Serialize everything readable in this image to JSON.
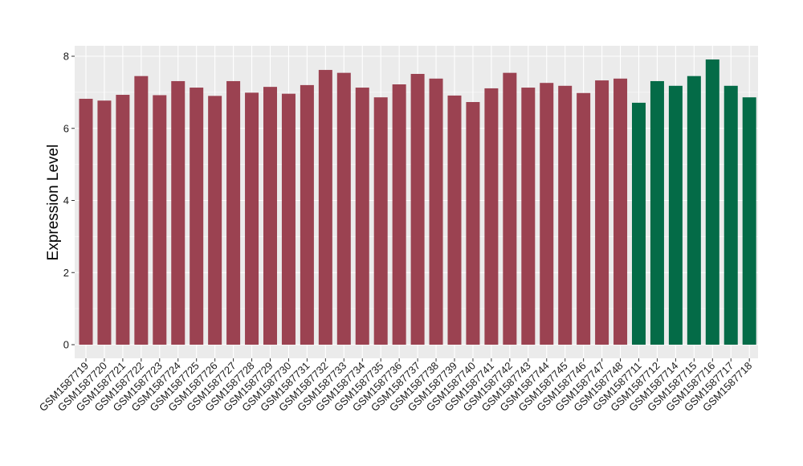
{
  "chart_data": {
    "type": "bar",
    "title": "",
    "xlabel": "",
    "ylabel": "Expression Level",
    "ylim": [
      0,
      8.2
    ],
    "yticks": [
      0,
      2,
      4,
      6,
      8
    ],
    "grid": true,
    "legend": "none",
    "background": "#ebebeb",
    "colors": {
      "group1": "#9b4251",
      "group2": "#046b47"
    },
    "categories": [
      "GSM1587719",
      "GSM1587720",
      "GSM1587721",
      "GSM1587722",
      "GSM1587723",
      "GSM1587724",
      "GSM1587725",
      "GSM1587726",
      "GSM1587727",
      "GSM1587728",
      "GSM1587729",
      "GSM1587730",
      "GSM1587731",
      "GSM1587732",
      "GSM1587733",
      "GSM1587734",
      "GSM1587735",
      "GSM1587736",
      "GSM1587737",
      "GSM1587738",
      "GSM1587739",
      "GSM1587740",
      "GSM1587741",
      "GSM1587742",
      "GSM1587743",
      "GSM1587744",
      "GSM1587745",
      "GSM1587746",
      "GSM1587747",
      "GSM1587748",
      "GSM1587711",
      "GSM1587712",
      "GSM1587714",
      "GSM1587715",
      "GSM1587716",
      "GSM1587717",
      "GSM1587718"
    ],
    "values": [
      6.82,
      6.77,
      6.93,
      7.45,
      6.92,
      7.31,
      7.13,
      6.9,
      7.31,
      6.99,
      7.15,
      6.96,
      7.2,
      7.62,
      7.54,
      7.13,
      6.86,
      7.22,
      7.51,
      7.38,
      6.91,
      6.73,
      7.11,
      7.54,
      7.13,
      7.26,
      7.18,
      6.98,
      7.33,
      7.38,
      6.71,
      7.31,
      7.18,
      7.45,
      7.91,
      7.18,
      6.86
    ],
    "groups": [
      "group1",
      "group1",
      "group1",
      "group1",
      "group1",
      "group1",
      "group1",
      "group1",
      "group1",
      "group1",
      "group1",
      "group1",
      "group1",
      "group1",
      "group1",
      "group1",
      "group1",
      "group1",
      "group1",
      "group1",
      "group1",
      "group1",
      "group1",
      "group1",
      "group1",
      "group1",
      "group1",
      "group1",
      "group1",
      "group1",
      "group2",
      "group2",
      "group2",
      "group2",
      "group2",
      "group2",
      "group2"
    ]
  }
}
